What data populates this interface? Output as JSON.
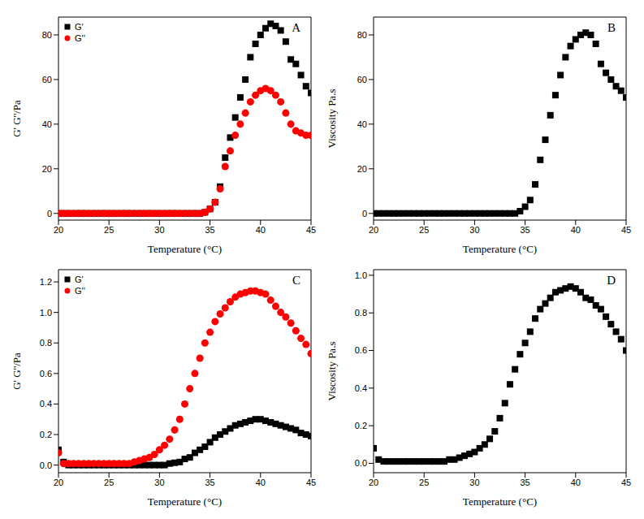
{
  "chart_data": [
    {
      "type": "scatter",
      "title": "A",
      "x_label": "Temperature (°C)",
      "y_label": "G' G''/Pa",
      "x": [
        20,
        20.5,
        21,
        21.5,
        22,
        22.5,
        23,
        23.5,
        24,
        24.5,
        25,
        25.5,
        26,
        26.5,
        27,
        27.5,
        28,
        28.5,
        29,
        29.5,
        30,
        30.5,
        31,
        31.5,
        32,
        32.5,
        33,
        33.5,
        34,
        34.5,
        35,
        35.5,
        36,
        36.5,
        37,
        37.5,
        38,
        38.5,
        39,
        39.5,
        40,
        40.5,
        41,
        41.5,
        42,
        42.5,
        43,
        43.5,
        44,
        44.5,
        45
      ],
      "series": [
        {
          "name": "G'",
          "color": "#000000",
          "marker": "square",
          "values": [
            0,
            0,
            0,
            0,
            0,
            0,
            0,
            0,
            0,
            0,
            0,
            0,
            0,
            0,
            0,
            0,
            0,
            0,
            0,
            0,
            0,
            0,
            0,
            0,
            0,
            0,
            0,
            0,
            0,
            0.5,
            2,
            5,
            12,
            25,
            34,
            43,
            52,
            60,
            70,
            76,
            80,
            83,
            85,
            84,
            82,
            77,
            69,
            67,
            62,
            57,
            54
          ]
        },
        {
          "name": "G''",
          "color": "#ff0000",
          "marker": "circle",
          "values": [
            0,
            0,
            0,
            0,
            0,
            0,
            0,
            0,
            0,
            0,
            0,
            0,
            0,
            0,
            0,
            0,
            0,
            0,
            0,
            0,
            0,
            0,
            0,
            0,
            0,
            0,
            0,
            0,
            0,
            0.5,
            2,
            5,
            11,
            21,
            28,
            35,
            40,
            45,
            50,
            53,
            55,
            56,
            55,
            53,
            50,
            45,
            40,
            37,
            36,
            35,
            35
          ]
        }
      ],
      "xlim": [
        20,
        45
      ],
      "xticks": [
        20,
        25,
        30,
        35,
        40,
        45
      ],
      "ylim": [
        -3,
        88
      ],
      "yticks": [
        0,
        20,
        40,
        60,
        80
      ],
      "legend": "top-left"
    },
    {
      "type": "scatter",
      "title": "B",
      "x_label": "Temperature (°C)",
      "y_label": "Viscosity Pa.s",
      "x": [
        20,
        20.5,
        21,
        21.5,
        22,
        22.5,
        23,
        23.5,
        24,
        24.5,
        25,
        25.5,
        26,
        26.5,
        27,
        27.5,
        28,
        28.5,
        29,
        29.5,
        30,
        30.5,
        31,
        31.5,
        32,
        32.5,
        33,
        33.5,
        34,
        34.5,
        35,
        35.5,
        36,
        36.5,
        37,
        37.5,
        38,
        38.5,
        39,
        39.5,
        40,
        40.5,
        41,
        41.5,
        42,
        42.5,
        43,
        43.5,
        44,
        44.5,
        45
      ],
      "color": "#000000",
      "marker": "square",
      "values": [
        0,
        0,
        0,
        0,
        0,
        0,
        0,
        0,
        0,
        0,
        0,
        0,
        0,
        0,
        0,
        0,
        0,
        0,
        0,
        0,
        0,
        0,
        0,
        0,
        0,
        0,
        0,
        0,
        0,
        1,
        3,
        6,
        13,
        24,
        33,
        44,
        53,
        62,
        70,
        75,
        78,
        80,
        81,
        80,
        76,
        67,
        63,
        60,
        57,
        55,
        52
      ],
      "xlim": [
        20,
        45
      ],
      "xticks": [
        20,
        25,
        30,
        35,
        40,
        45
      ],
      "ylim": [
        -3,
        88
      ],
      "yticks": [
        0,
        20,
        40,
        60,
        80
      ]
    },
    {
      "type": "scatter",
      "title": "C",
      "x_label": "Temperature (°C)",
      "y_label": "G' G''/Pa",
      "x": [
        20,
        20.5,
        21,
        21.5,
        22,
        22.5,
        23,
        23.5,
        24,
        24.5,
        25,
        25.5,
        26,
        26.5,
        27,
        27.5,
        28,
        28.5,
        29,
        29.5,
        30,
        30.5,
        31,
        31.5,
        32,
        32.5,
        33,
        33.5,
        34,
        34.5,
        35,
        35.5,
        36,
        36.5,
        37,
        37.5,
        38,
        38.5,
        39,
        39.5,
        40,
        40.5,
        41,
        41.5,
        42,
        42.5,
        43,
        43.5,
        44,
        44.5,
        45
      ],
      "series": [
        {
          "name": "G'",
          "color": "#000000",
          "marker": "square",
          "values": [
            0.1,
            0.02,
            0,
            0,
            0,
            0,
            0,
            0,
            0,
            0,
            0,
            0,
            0,
            0,
            0,
            0,
            0,
            0,
            0,
            0,
            0,
            0,
            0.01,
            0.015,
            0.02,
            0.04,
            0.05,
            0.08,
            0.1,
            0.12,
            0.15,
            0.18,
            0.2,
            0.22,
            0.24,
            0.26,
            0.27,
            0.28,
            0.29,
            0.3,
            0.3,
            0.29,
            0.28,
            0.27,
            0.26,
            0.25,
            0.24,
            0.23,
            0.21,
            0.2,
            0.19
          ]
        },
        {
          "name": "G''",
          "color": "#ff0000",
          "marker": "circle",
          "values": [
            0.08,
            0.01,
            0.01,
            0.01,
            0.01,
            0.01,
            0.01,
            0.01,
            0.01,
            0.01,
            0.01,
            0.01,
            0.01,
            0.01,
            0.01,
            0.02,
            0.03,
            0.04,
            0.05,
            0.07,
            0.1,
            0.13,
            0.17,
            0.23,
            0.3,
            0.4,
            0.5,
            0.6,
            0.7,
            0.8,
            0.87,
            0.94,
            0.99,
            1.03,
            1.07,
            1.1,
            1.12,
            1.13,
            1.14,
            1.14,
            1.13,
            1.12,
            1.08,
            1.04,
            1,
            0.97,
            0.93,
            0.88,
            0.83,
            0.79,
            0.73
          ]
        }
      ],
      "xlim": [
        20,
        45
      ],
      "xticks": [
        20,
        25,
        30,
        35,
        40,
        45
      ],
      "ylim": [
        -0.05,
        1.28
      ],
      "yticks": [
        {
          "value": 0,
          "label": "0.0"
        },
        0.2,
        0.4,
        0.6,
        0.8,
        {
          "value": 1,
          "label": "1.0"
        },
        1.2
      ],
      "legend": "top-left"
    },
    {
      "type": "scatter",
      "title": "D",
      "x_label": "Temperature (°C)",
      "y_label": "Viscosity Pa.s",
      "x": [
        20,
        20.5,
        21,
        21.5,
        22,
        22.5,
        23,
        23.5,
        24,
        24.5,
        25,
        25.5,
        26,
        26.5,
        27,
        27.5,
        28,
        28.5,
        29,
        29.5,
        30,
        30.5,
        31,
        31.5,
        32,
        32.5,
        33,
        33.5,
        34,
        34.5,
        35,
        35.5,
        36,
        36.5,
        37,
        37.5,
        38,
        38.5,
        39,
        39.5,
        40,
        40.5,
        41,
        41.5,
        42,
        42.5,
        43,
        43.5,
        44,
        44.5,
        45
      ],
      "color": "#000000",
      "marker": "square",
      "values": [
        0.08,
        0.02,
        0.01,
        0.01,
        0.01,
        0.01,
        0.01,
        0.01,
        0.01,
        0.01,
        0.01,
        0.01,
        0.01,
        0.01,
        0.01,
        0.02,
        0.02,
        0.03,
        0.04,
        0.05,
        0.06,
        0.08,
        0.1,
        0.13,
        0.17,
        0.24,
        0.32,
        0.42,
        0.5,
        0.58,
        0.64,
        0.7,
        0.77,
        0.82,
        0.85,
        0.88,
        0.91,
        0.92,
        0.93,
        0.94,
        0.93,
        0.91,
        0.88,
        0.87,
        0.84,
        0.82,
        0.78,
        0.74,
        0.7,
        0.66,
        0.6
      ],
      "xlim": [
        20,
        45
      ],
      "xticks": [
        20,
        25,
        30,
        35,
        40,
        45
      ],
      "ylim": [
        -0.05,
        1.03
      ],
      "yticks": [
        {
          "value": 0,
          "label": "0.0"
        },
        0.2,
        0.4,
        0.6,
        0.8,
        {
          "value": 1,
          "label": "1.0"
        }
      ]
    }
  ]
}
